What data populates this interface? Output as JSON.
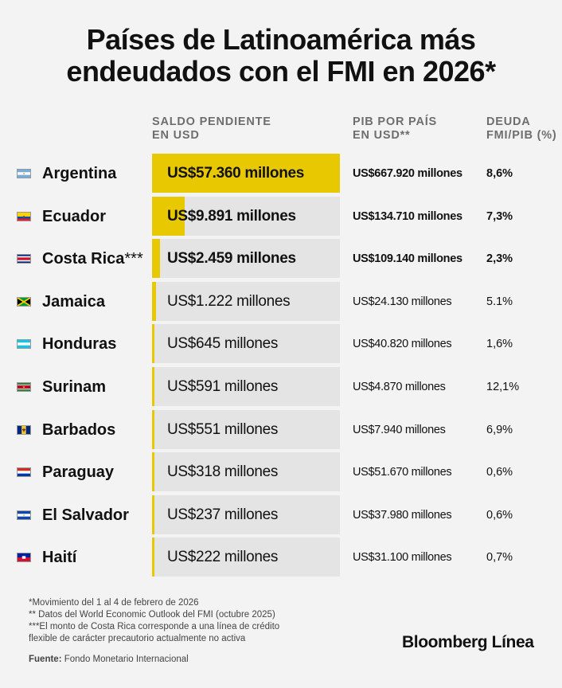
{
  "title": {
    "line1": "Países de Latinoamérica más",
    "line2": "endeudados con el FMI en 2026*"
  },
  "headers": {
    "saldo_line1": "SALDO PENDIENTE",
    "saldo_line2": "EN USD",
    "pib_line1": "PIB POR PAÍS",
    "pib_line2": "EN USD**",
    "ratio_line1": "DEUDA",
    "ratio_line2": "FMI/PIB (%)"
  },
  "colors": {
    "bar_fill": "#e8c800",
    "bar_track": "#e4e4e4",
    "background": "#f3f3f3"
  },
  "chart_data": {
    "type": "bar",
    "categories": [
      "Argentina",
      "Ecuador",
      "Costa Rica",
      "Jamaica",
      "Honduras",
      "Surinam",
      "Barbados",
      "Paraguay",
      "El Salvador",
      "Haití"
    ],
    "series": [
      {
        "values": [
          57360,
          9891,
          2459,
          1222,
          645,
          591,
          551,
          318,
          237,
          222
        ]
      }
    ],
    "xlim": [
      0,
      57360
    ]
  },
  "rows": [
    {
      "country": "Argentina",
      "suffix": "",
      "flag": "argentina-flag-icon",
      "debt": 57360,
      "debt_label": "US$57.360 millones",
      "pib": "US$667.920 millones",
      "ratio": "8,6%",
      "emphasis": true
    },
    {
      "country": "Ecuador",
      "suffix": "",
      "flag": "ecuador-flag-icon",
      "debt": 9891,
      "debt_label": "US$9.891 millones",
      "pib": "US$134.710 millones",
      "ratio": "7,3%",
      "emphasis": true
    },
    {
      "country": "Costa Rica",
      "suffix": "***",
      "flag": "costa-rica-flag-icon",
      "debt": 2459,
      "debt_label": "US$2.459 millones",
      "pib": "US$109.140 millones",
      "ratio": "2,3%",
      "emphasis": true
    },
    {
      "country": "Jamaica",
      "suffix": "",
      "flag": "jamaica-flag-icon",
      "debt": 1222,
      "debt_label": "US$1.222 millones",
      "pib": "US$24.130 millones",
      "ratio": "5.1%",
      "emphasis": false
    },
    {
      "country": "Honduras",
      "suffix": "",
      "flag": "honduras-flag-icon",
      "debt": 645,
      "debt_label": "US$645 millones",
      "pib": "US$40.820 millones",
      "ratio": "1,6%",
      "emphasis": false
    },
    {
      "country": "Surinam",
      "suffix": "",
      "flag": "surinam-flag-icon",
      "debt": 591,
      "debt_label": "US$591 millones",
      "pib": "US$4.870 millones",
      "ratio": "12,1%",
      "emphasis": false
    },
    {
      "country": "Barbados",
      "suffix": "",
      "flag": "barbados-flag-icon",
      "debt": 551,
      "debt_label": "US$551 millones",
      "pib": "US$7.940 millones",
      "ratio": "6,9%",
      "emphasis": false
    },
    {
      "country": "Paraguay",
      "suffix": "",
      "flag": "paraguay-flag-icon",
      "debt": 318,
      "debt_label": "US$318 millones",
      "pib": "US$51.670 millones",
      "ratio": "0,6%",
      "emphasis": false
    },
    {
      "country": "El Salvador",
      "suffix": "",
      "flag": "el-salvador-flag-icon",
      "debt": 237,
      "debt_label": "US$237 millones",
      "pib": "US$37.980 millones",
      "ratio": "0,6%",
      "emphasis": false
    },
    {
      "country": "Haití",
      "suffix": "",
      "flag": "haiti-flag-icon",
      "debt": 222,
      "debt_label": "US$222 millones",
      "pib": "US$31.100 millones",
      "ratio": "0,7%",
      "emphasis": false
    }
  ],
  "notes": {
    "n1": "*Movimiento del 1 al 4 de febrero de 2026",
    "n2": "** Datos del World Economic Outlook del FMI (octubre 2025)",
    "n3": "***El monto de Costa Rica corresponde a una línea de crédito",
    "n4": "flexible de carácter precautorio actualmente no activa"
  },
  "source": {
    "label": "Fuente:",
    "text": " Fondo Monetario Internacional"
  },
  "brand": "Bloomberg Línea"
}
